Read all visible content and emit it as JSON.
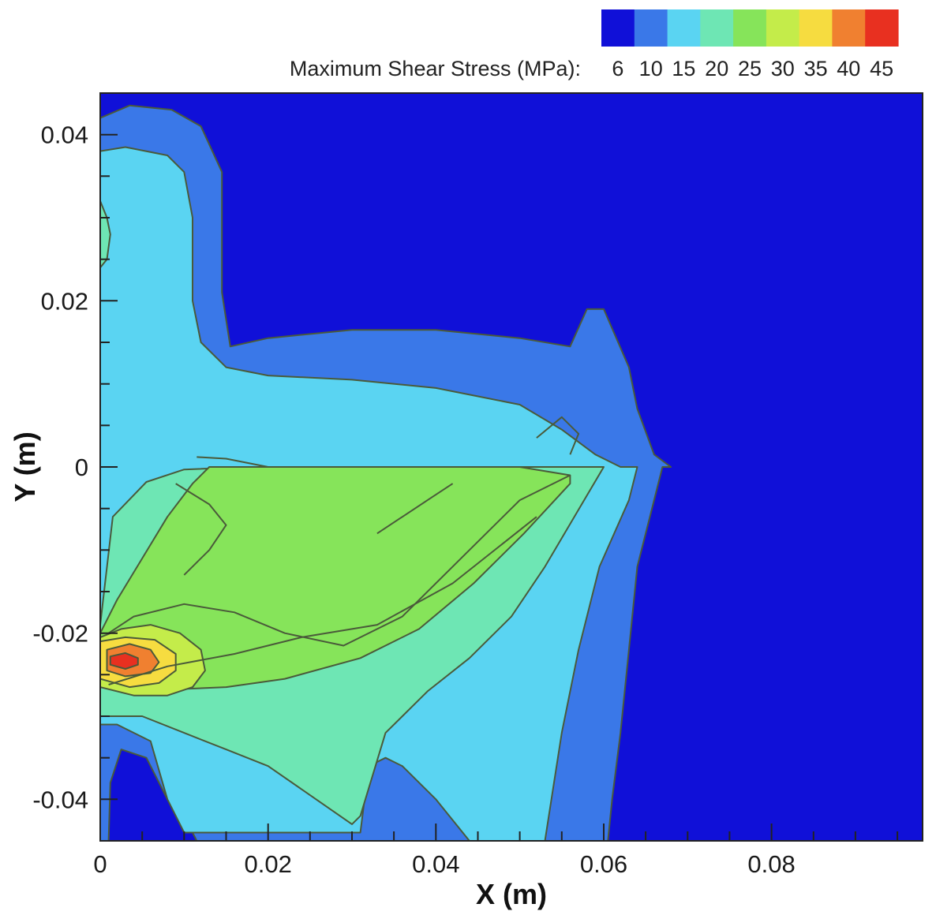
{
  "chart_data": {
    "type": "heatmap",
    "title": "",
    "xlabel": "X (m)",
    "ylabel": "Y (m)",
    "xlim": [
      0,
      0.098
    ],
    "ylim": [
      -0.045,
      0.045
    ],
    "x_ticks": [
      {
        "value": 0,
        "label": "0"
      },
      {
        "value": 0.02,
        "label": "0.02"
      },
      {
        "value": 0.04,
        "label": "0.04"
      },
      {
        "value": 0.06,
        "label": "0.06"
      },
      {
        "value": 0.08,
        "label": "0.08"
      }
    ],
    "y_ticks": [
      {
        "value": 0.04,
        "label": "0.04"
      },
      {
        "value": 0.02,
        "label": "0.02"
      },
      {
        "value": 0,
        "label": "0"
      },
      {
        "value": -0.02,
        "label": "-0.02"
      },
      {
        "value": -0.04,
        "label": "-0.04"
      }
    ],
    "colorbar": {
      "title": "Maximum Shear Stress (MPa):",
      "position": "top-right",
      "levels": [
        {
          "label": "6",
          "color": "#1010d8"
        },
        {
          "label": "10",
          "color": "#3a78e8"
        },
        {
          "label": "15",
          "color": "#5ad4f2"
        },
        {
          "label": "20",
          "color": "#6ee6b4"
        },
        {
          "label": "25",
          "color": "#86e45a"
        },
        {
          "label": "30",
          "color": "#c4ec4a"
        },
        {
          "label": "35",
          "color": "#f6dc40"
        },
        {
          "label": "40",
          "color": "#f08030"
        },
        {
          "label": "45",
          "color": "#e83020"
        }
      ]
    },
    "regions": [
      {
        "level": 1,
        "polygon": [
          [
            0,
            0.042
          ],
          [
            0.0035,
            0.0435
          ],
          [
            0.0085,
            0.043
          ],
          [
            0.012,
            0.041
          ],
          [
            0.0145,
            0.0355
          ],
          [
            0.0145,
            0.021
          ],
          [
            0.0155,
            0.0145
          ],
          [
            0.02,
            0.0155
          ],
          [
            0.03,
            0.0165
          ],
          [
            0.04,
            0.0165
          ],
          [
            0.05,
            0.0155
          ],
          [
            0.056,
            0.0145
          ],
          [
            0.058,
            0.019
          ],
          [
            0.06,
            0.019
          ],
          [
            0.063,
            0.012
          ],
          [
            0.064,
            0.007
          ],
          [
            0.066,
            0.0015
          ],
          [
            0.068,
            0
          ],
          [
            0.067,
            0
          ],
          [
            0.066,
            -0.004
          ],
          [
            0.064,
            -0.012
          ],
          [
            0.063,
            -0.022
          ],
          [
            0.062,
            -0.032
          ],
          [
            0.061,
            -0.04
          ],
          [
            0.0605,
            -0.045
          ],
          [
            0.0115,
            -0.045
          ],
          [
            0.01,
            -0.042
          ],
          [
            0.008,
            -0.04
          ],
          [
            0.0055,
            -0.035
          ],
          [
            0.0025,
            -0.034
          ],
          [
            0.0012,
            -0.038
          ],
          [
            0.001,
            -0.045
          ],
          [
            0,
            -0.045
          ]
        ]
      },
      {
        "level": 1,
        "polygon": [
          [
            0,
            -0.0012
          ],
          [
            0.003,
            -0.001
          ],
          [
            0.0065,
            -0.0013
          ],
          [
            0.0075,
            -0.0025
          ],
          [
            0.0065,
            -0.004
          ],
          [
            0.003,
            -0.0042
          ],
          [
            0,
            -0.004
          ]
        ]
      },
      {
        "level": 2,
        "polygon": [
          [
            0,
            0.038
          ],
          [
            0.003,
            0.0385
          ],
          [
            0.008,
            0.0375
          ],
          [
            0.01,
            0.0355
          ],
          [
            0.011,
            0.03
          ],
          [
            0.011,
            0.02
          ],
          [
            0.012,
            0.015
          ],
          [
            0.015,
            0.012
          ],
          [
            0.02,
            0.011
          ],
          [
            0.03,
            0.0105
          ],
          [
            0.04,
            0.0095
          ],
          [
            0.05,
            0.0075
          ],
          [
            0.055,
            0.0045
          ],
          [
            0.059,
            0.0015
          ],
          [
            0.062,
            0
          ],
          [
            0.064,
            0
          ],
          [
            0.063,
            -0.004
          ],
          [
            0.0595,
            -0.012
          ],
          [
            0.057,
            -0.022
          ],
          [
            0.055,
            -0.032
          ],
          [
            0.053,
            -0.045
          ],
          [
            0.044,
            -0.045
          ],
          [
            0.04,
            -0.04
          ],
          [
            0.036,
            -0.036
          ],
          [
            0.034,
            -0.035
          ],
          [
            0.032,
            -0.036
          ],
          [
            0.031,
            -0.044
          ],
          [
            0.01,
            -0.044
          ],
          [
            0.008,
            -0.04
          ],
          [
            0.006,
            -0.033
          ],
          [
            0.002,
            -0.031
          ],
          [
            0,
            -0.031
          ]
        ]
      },
      {
        "level": 3,
        "polygon": [
          [
            0,
            0.032
          ],
          [
            0.0008,
            0.03
          ],
          [
            0.0012,
            0.028
          ],
          [
            0.0008,
            0.025
          ],
          [
            0,
            0.024
          ]
        ]
      },
      {
        "level": 3,
        "polygon": [
          [
            0,
            -0.019
          ],
          [
            0.0015,
            -0.006
          ],
          [
            0.0055,
            -0.0018
          ],
          [
            0.01,
            -0.0003
          ],
          [
            0.018,
            0
          ],
          [
            0.03,
            0
          ],
          [
            0.04,
            0
          ],
          [
            0.05,
            0
          ],
          [
            0.0575,
            0
          ],
          [
            0.06,
            0
          ],
          [
            0.0565,
            -0.006
          ],
          [
            0.053,
            -0.012
          ],
          [
            0.049,
            -0.018
          ],
          [
            0.044,
            -0.023
          ],
          [
            0.039,
            -0.027
          ],
          [
            0.034,
            -0.032
          ],
          [
            0.031,
            -0.042
          ],
          [
            0.03,
            -0.043
          ],
          [
            0.02,
            -0.036
          ],
          [
            0.015,
            -0.034
          ],
          [
            0.01,
            -0.032
          ],
          [
            0.005,
            -0.03
          ],
          [
            0.001,
            -0.03
          ],
          [
            0,
            -0.03
          ]
        ]
      },
      {
        "level": 4,
        "polygon": [
          [
            0,
            -0.02
          ],
          [
            0.002,
            -0.016
          ],
          [
            0.005,
            -0.011
          ],
          [
            0.008,
            -0.006
          ],
          [
            0.011,
            -0.002
          ],
          [
            0.013,
            0
          ],
          [
            0.026,
            0
          ],
          [
            0.034,
            0
          ],
          [
            0.042,
            0
          ],
          [
            0.05,
            0
          ],
          [
            0.056,
            -0.001
          ],
          [
            0.056,
            -0.002
          ],
          [
            0.0505,
            -0.008
          ],
          [
            0.0445,
            -0.014
          ],
          [
            0.038,
            -0.0195
          ],
          [
            0.031,
            -0.023
          ],
          [
            0.022,
            -0.0255
          ],
          [
            0.015,
            -0.0265
          ],
          [
            0.008,
            -0.0268
          ],
          [
            0.003,
            -0.0265
          ],
          [
            0,
            -0.0262
          ]
        ]
      },
      {
        "level": 5,
        "polygon": [
          [
            0,
            -0.0205
          ],
          [
            0.0025,
            -0.0195
          ],
          [
            0.006,
            -0.019
          ],
          [
            0.0095,
            -0.02
          ],
          [
            0.012,
            -0.022
          ],
          [
            0.0125,
            -0.0245
          ],
          [
            0.011,
            -0.0265
          ],
          [
            0.008,
            -0.0275
          ],
          [
            0.004,
            -0.0275
          ],
          [
            0,
            -0.0265
          ]
        ]
      },
      {
        "level": 6,
        "polygon": [
          [
            0,
            -0.021
          ],
          [
            0.003,
            -0.0205
          ],
          [
            0.0065,
            -0.0208
          ],
          [
            0.009,
            -0.0225
          ],
          [
            0.009,
            -0.0245
          ],
          [
            0.007,
            -0.026
          ],
          [
            0.0035,
            -0.0265
          ],
          [
            0,
            -0.0255
          ]
        ]
      },
      {
        "level": 7,
        "polygon": [
          [
            0.0008,
            -0.022
          ],
          [
            0.0035,
            -0.0213
          ],
          [
            0.006,
            -0.022
          ],
          [
            0.007,
            -0.0235
          ],
          [
            0.006,
            -0.0248
          ],
          [
            0.003,
            -0.0252
          ],
          [
            0.0008,
            -0.0245
          ]
        ]
      },
      {
        "level": 8,
        "polygon": [
          [
            0.0012,
            -0.0228
          ],
          [
            0.003,
            -0.0224
          ],
          [
            0.0045,
            -0.023
          ],
          [
            0.0045,
            -0.0238
          ],
          [
            0.003,
            -0.0243
          ],
          [
            0.0012,
            -0.0238
          ]
        ]
      }
    ],
    "lines": [
      {
        "points": [
          [
            0.001,
            -0.02
          ],
          [
            0.004,
            -0.018
          ],
          [
            0.01,
            -0.0165
          ],
          [
            0.016,
            -0.0175
          ],
          [
            0.022,
            -0.02
          ],
          [
            0.029,
            -0.0215
          ],
          [
            0.036,
            -0.018
          ],
          [
            0.044,
            -0.01
          ],
          [
            0.05,
            -0.004
          ],
          [
            0.056,
            -0.001
          ]
        ]
      },
      {
        "points": [
          [
            0.001,
            -0.0262
          ],
          [
            0.008,
            -0.024
          ],
          [
            0.016,
            -0.0225
          ],
          [
            0.024,
            -0.0205
          ],
          [
            0.033,
            -0.019
          ],
          [
            0.042,
            -0.014
          ],
          [
            0.052,
            -0.006
          ]
        ]
      },
      {
        "points": [
          [
            0.033,
            -0.008
          ],
          [
            0.039,
            -0.004
          ],
          [
            0.042,
            -0.002
          ]
        ]
      },
      {
        "points": [
          [
            0.009,
            -0.002
          ],
          [
            0.013,
            -0.0045
          ],
          [
            0.015,
            -0.007
          ],
          [
            0.013,
            -0.01
          ],
          [
            0.01,
            -0.013
          ]
        ]
      },
      {
        "points": [
          [
            0.052,
            0.0035
          ],
          [
            0.055,
            0.006
          ],
          [
            0.057,
            0.004
          ],
          [
            0.056,
            0.0015
          ]
        ]
      },
      {
        "points": [
          [
            0.0115,
            0.0012
          ],
          [
            0.015,
            0.001
          ],
          [
            0.02,
            0.0
          ]
        ]
      }
    ]
  }
}
